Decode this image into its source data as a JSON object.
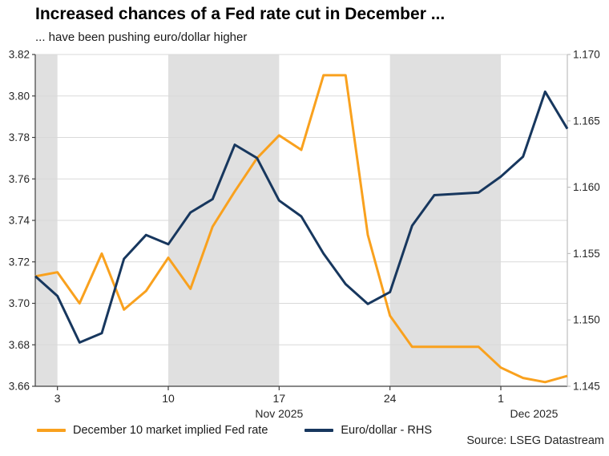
{
  "title": "Increased chances of a Fed rate cut in December ...",
  "subtitle": "... have been pushing euro/dollar higher",
  "source": "Source: LSEG Datastream",
  "colors": {
    "fed_rate_line": "#F9A11E",
    "eurusd_line": "#17375E",
    "week_band": "#E0E0E0",
    "gridline": "#D9D9D9",
    "axis_dark": "#404040",
    "axis_light": "#BFBFBF",
    "tick_label": "#262626"
  },
  "legend": [
    {
      "label": "December 10 market implied Fed rate",
      "color": "#F9A11E"
    },
    {
      "label": "Euro/dollar - RHS",
      "color": "#17375E"
    }
  ],
  "chart_data": {
    "type": "line",
    "x": [
      "Oct 31",
      "Nov 3",
      "Nov 4",
      "Nov 5",
      "Nov 6",
      "Nov 7",
      "Nov 10",
      "Nov 11",
      "Nov 12",
      "Nov 13",
      "Nov 14",
      "Nov 17",
      "Nov 18",
      "Nov 19",
      "Nov 20",
      "Nov 21",
      "Nov 24",
      "Nov 25",
      "Nov 26",
      "Nov 27",
      "Nov 28",
      "Dec 1",
      "Dec 2",
      "Dec 3",
      "Dec 4"
    ],
    "series": [
      {
        "name": "December 10 market implied Fed rate",
        "axis": "left",
        "color": "#F9A11E",
        "values": [
          3.713,
          3.715,
          3.7,
          3.724,
          3.697,
          3.706,
          3.722,
          3.707,
          3.737,
          3.754,
          3.77,
          3.781,
          3.774,
          3.81,
          3.81,
          3.733,
          3.694,
          3.679,
          3.679,
          3.679,
          3.679,
          3.669,
          3.664,
          3.662,
          3.665
        ]
      },
      {
        "name": "Euro/dollar - RHS",
        "axis": "right",
        "color": "#17375E",
        "values": [
          1.1533,
          1.1518,
          1.1483,
          1.149,
          1.1546,
          1.1564,
          1.1557,
          1.1581,
          1.1591,
          1.1632,
          1.1622,
          1.159,
          1.1578,
          1.155,
          1.1527,
          1.1512,
          1.1521,
          1.1571,
          1.1594,
          1.1595,
          1.1596,
          1.1608,
          1.1623,
          1.1672,
          1.1644
        ]
      }
    ],
    "left_axis": {
      "min": 3.66,
      "max": 3.82,
      "step": 0.02,
      "tick_labels": [
        "3.82",
        "3.80",
        "3.78",
        "3.76",
        "3.74",
        "3.72",
        "3.70",
        "3.68",
        "3.66"
      ]
    },
    "right_axis": {
      "min": 1.145,
      "max": 1.17,
      "step": 0.005,
      "tick_labels": [
        "1.170",
        "1.165",
        "1.160",
        "1.155",
        "1.150",
        "1.145"
      ]
    },
    "x_ticks": [
      {
        "index": 1,
        "label": "3"
      },
      {
        "index": 6,
        "label": "10"
      },
      {
        "index": 11,
        "label": "17"
      },
      {
        "index": 16,
        "label": "24"
      },
      {
        "index": 21,
        "label": "1"
      }
    ],
    "month_labels": [
      {
        "label": "Nov 2025",
        "span": [
          1,
          21
        ]
      },
      {
        "label": "Dec 2025",
        "span": [
          21,
          24
        ]
      }
    ],
    "shaded_week_bands": [
      [
        -2,
        1
      ],
      [
        6,
        11
      ],
      [
        16,
        21
      ]
    ],
    "grid": "horizontal-only",
    "legend_position": "bottom"
  }
}
